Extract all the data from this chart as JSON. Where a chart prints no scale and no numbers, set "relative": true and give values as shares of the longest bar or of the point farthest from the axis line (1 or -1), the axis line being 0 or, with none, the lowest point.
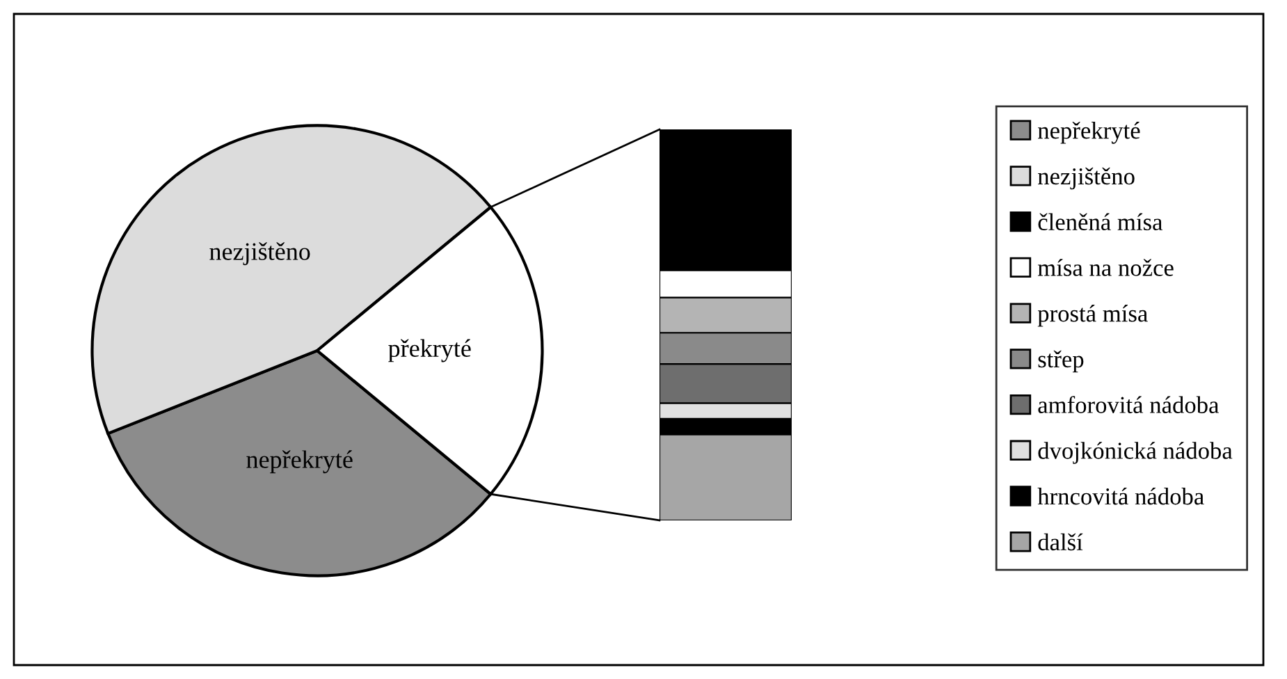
{
  "chart_data": [
    {
      "type": "pie",
      "categories": [
        "nepřekryté",
        "nezjištěno",
        "překryté"
      ],
      "values": [
        33,
        45,
        22
      ],
      "colors": [
        "#8c8c8c",
        "#dcdcdc",
        "#ffffff"
      ],
      "legend": "right"
    },
    {
      "type": "bar",
      "stacked": true,
      "relative": true,
      "legend": "right",
      "categories": [
        null
      ],
      "series": [
        {
          "name": "další",
          "color": "#a6a6a6",
          "values": [
            0.22
          ]
        },
        {
          "name": "hrncovitá nádoba",
          "color": "#000000",
          "values": [
            0.04
          ]
        },
        {
          "name": "dvojkónická nádoba",
          "color": "#e0e0e0",
          "values": [
            0.04
          ]
        },
        {
          "name": "amforovitá nádoba",
          "color": "#6e6e6e",
          "values": [
            0.1
          ]
        },
        {
          "name": "střep",
          "color": "#8a8a8a",
          "values": [
            0.08
          ]
        },
        {
          "name": "prostá mísa",
          "color": "#b4b4b4",
          "values": [
            0.09
          ]
        },
        {
          "name": "mísa na nožce",
          "color": "#ffffff",
          "values": [
            0.07
          ]
        },
        {
          "name": "členěná mísa",
          "color": "#000000",
          "values": [
            0.36
          ]
        }
      ]
    }
  ]
}
